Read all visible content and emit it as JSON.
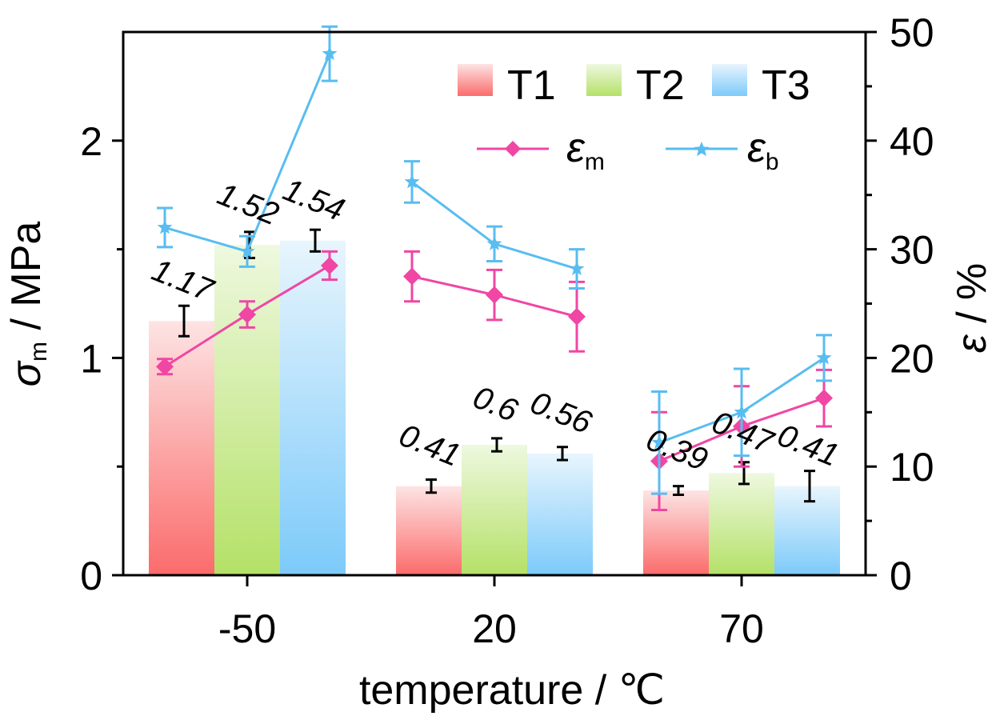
{
  "chart_data": {
    "type": "bar",
    "categories": [
      "-50",
      "20",
      "70"
    ],
    "xlabel": "temperature / ℃",
    "ylabel_left": {
      "main": "σ",
      "sub": "m",
      "unit": " / MPa"
    },
    "ylabel_right": {
      "main": "ε",
      "unit": " / %"
    },
    "ylim_left": [
      0,
      2.5
    ],
    "ylim_right": [
      0,
      50
    ],
    "yticks_left": [
      0,
      1,
      2
    ],
    "yticks_right": [
      0,
      10,
      20,
      30,
      40,
      50
    ],
    "grid": false,
    "legend_placement": "top-right",
    "bar_series": [
      {
        "name": "T1",
        "values": [
          1.17,
          0.41,
          0.39
        ],
        "errors": [
          0.07,
          0.03,
          0.02
        ],
        "value_labels": [
          "1.17",
          "0.41",
          "0.39"
        ],
        "color_top": "#fde4e4",
        "color_bottom": "#fb6b6b"
      },
      {
        "name": "T2",
        "values": [
          1.52,
          0.6,
          0.47
        ],
        "errors": [
          0.06,
          0.03,
          0.05
        ],
        "value_labels": [
          "1.52",
          "0.6",
          "0.47"
        ],
        "color_top": "#eef8df",
        "color_bottom": "#b4e167"
      },
      {
        "name": "T3",
        "values": [
          1.54,
          0.56,
          0.41
        ],
        "errors": [
          0.05,
          0.03,
          0.07
        ],
        "value_labels": [
          "1.54",
          "0.56",
          "0.41"
        ],
        "color_top": "#e8f5fd",
        "color_bottom": "#7ccafa"
      }
    ],
    "line_series": [
      {
        "name": "ε",
        "sub": "m",
        "marker": "diamond",
        "color": "#f046a4",
        "points": [
          [
            19.2,
            0.7
          ],
          [
            24,
            1.2
          ],
          [
            28.5,
            1.3
          ],
          [
            27.5,
            2.3
          ],
          [
            25.8,
            2.3
          ],
          [
            23.8,
            3.2
          ],
          [
            10.5,
            4.5
          ],
          [
            13.7,
            3.7
          ],
          [
            16.3,
            2.6
          ]
        ]
      },
      {
        "name": "ε",
        "sub": "b",
        "marker": "star",
        "color": "#58bdf1",
        "points": [
          [
            32,
            1.8
          ],
          [
            29.8,
            1.4
          ],
          [
            48,
            2.5
          ],
          [
            36.2,
            1.9
          ],
          [
            30.5,
            1.6
          ],
          [
            28.2,
            1.8
          ],
          [
            12.2,
            4.7
          ],
          [
            15,
            4
          ],
          [
            20,
            2.1
          ]
        ]
      }
    ]
  }
}
